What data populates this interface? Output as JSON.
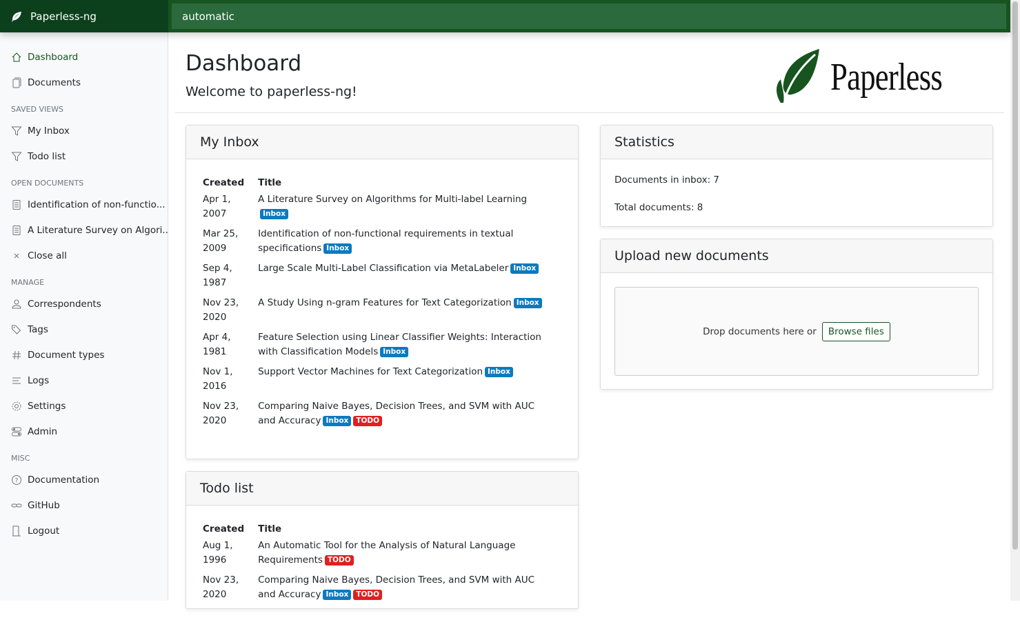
{
  "app": {
    "name": "Paperless-ng",
    "search_value": "automatic",
    "logo_text": "Paperless"
  },
  "sidebar": {
    "main": [
      {
        "label": "Dashboard",
        "icon": "house-icon"
      },
      {
        "label": "Documents",
        "icon": "files-icon"
      }
    ],
    "saved_views_heading": "Saved views",
    "saved_views": [
      {
        "label": "My Inbox"
      },
      {
        "label": "Todo list"
      }
    ],
    "open_heading": "Open documents",
    "open_docs": [
      {
        "label": "Identification of non-functio..."
      },
      {
        "label": "A Literature Survey on Algori..."
      }
    ],
    "close_all": "Close all",
    "manage_heading": "Manage",
    "manage": [
      {
        "label": "Correspondents"
      },
      {
        "label": "Tags"
      },
      {
        "label": "Document types"
      },
      {
        "label": "Logs"
      },
      {
        "label": "Settings"
      },
      {
        "label": "Admin"
      }
    ],
    "misc_heading": "Misc",
    "misc": [
      {
        "label": "Documentation"
      },
      {
        "label": "GitHub"
      },
      {
        "label": "Logout"
      }
    ]
  },
  "header": {
    "title": "Dashboard",
    "welcome": "Welcome to paperless-ng!"
  },
  "inbox": {
    "title": "My Inbox",
    "col_created": "Created",
    "col_title": "Title",
    "rows": [
      {
        "created": "Apr 1, 2007",
        "title": "A Literature Survey on Algorithms for Multi-label Learning",
        "tags": [
          "Inbox"
        ]
      },
      {
        "created": "Mar 25, 2009",
        "title": "Identification of non-functional requirements in textual specifications",
        "tags": [
          "Inbox"
        ]
      },
      {
        "created": "Sep 4, 1987",
        "title": "Large Scale Multi-Label Classification via MetaLabeler",
        "tags": [
          "Inbox"
        ]
      },
      {
        "created": "Nov 23, 2020",
        "title": "A Study Using n-gram Features for Text Categorization",
        "tags": [
          "Inbox"
        ]
      },
      {
        "created": "Apr 4, 1981",
        "title": "Feature Selection using Linear Classifier Weights: Interaction with Classification Models",
        "tags": [
          "Inbox"
        ]
      },
      {
        "created": "Nov 1, 2016",
        "title": "Support Vector Machines for Text Categorization",
        "tags": [
          "Inbox"
        ]
      },
      {
        "created": "Nov 23, 2020",
        "title": "Comparing Naive Bayes, Decision Trees, and SVM with AUC and Accuracy",
        "tags": [
          "Inbox",
          "TODO"
        ]
      }
    ]
  },
  "todo": {
    "title": "Todo list",
    "col_created": "Created",
    "col_title": "Title",
    "rows": [
      {
        "created": "Aug 1, 1996",
        "title": "An Automatic Tool for the Analysis of Natural Language Requirements",
        "tags": [
          "TODO"
        ]
      },
      {
        "created": "Nov 23, 2020",
        "title": "Comparing Naive Bayes, Decision Trees, and SVM with AUC and Accuracy",
        "tags": [
          "Inbox",
          "TODO"
        ]
      }
    ]
  },
  "statistics": {
    "title": "Statistics",
    "inbox_label": "Documents in inbox: 7",
    "total_label": "Total documents: 8"
  },
  "upload": {
    "title": "Upload new documents",
    "drop_text": "Drop documents here or",
    "browse": "Browse files"
  },
  "colors": {
    "brand": "#17541f",
    "inbox_tag": "#0b7ac0",
    "todo_tag": "#e02020"
  }
}
